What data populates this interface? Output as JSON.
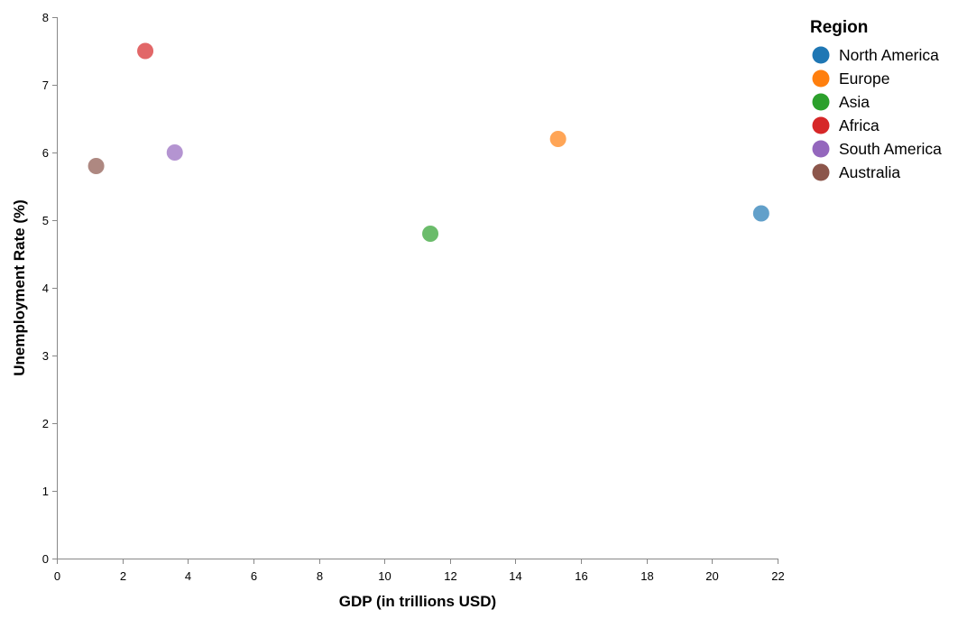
{
  "chart_data": {
    "type": "scatter",
    "title": "",
    "xlabel": "GDP (in trillions USD)",
    "ylabel": "Unemployment Rate (%)",
    "xlim": [
      0,
      22
    ],
    "ylim": [
      0,
      8
    ],
    "x_ticks": [
      0,
      2,
      4,
      6,
      8,
      10,
      12,
      14,
      16,
      18,
      20,
      22
    ],
    "y_ticks": [
      0,
      1,
      2,
      3,
      4,
      5,
      6,
      7,
      8
    ],
    "grid": false,
    "legend": {
      "title": "Region",
      "position": "top-right"
    },
    "series": [
      {
        "name": "North America",
        "color": "#1f77b4",
        "x": 21.5,
        "y": 5.1
      },
      {
        "name": "Europe",
        "color": "#ff7f0e",
        "x": 15.3,
        "y": 6.2
      },
      {
        "name": "Asia",
        "color": "#2ca02c",
        "x": 11.4,
        "y": 4.8
      },
      {
        "name": "Africa",
        "color": "#d62728",
        "x": 2.7,
        "y": 7.5
      },
      {
        "name": "South America",
        "color": "#9467bd",
        "x": 3.6,
        "y": 6.0
      },
      {
        "name": "Australia",
        "color": "#8c564b",
        "x": 1.2,
        "y": 5.8
      }
    ]
  }
}
